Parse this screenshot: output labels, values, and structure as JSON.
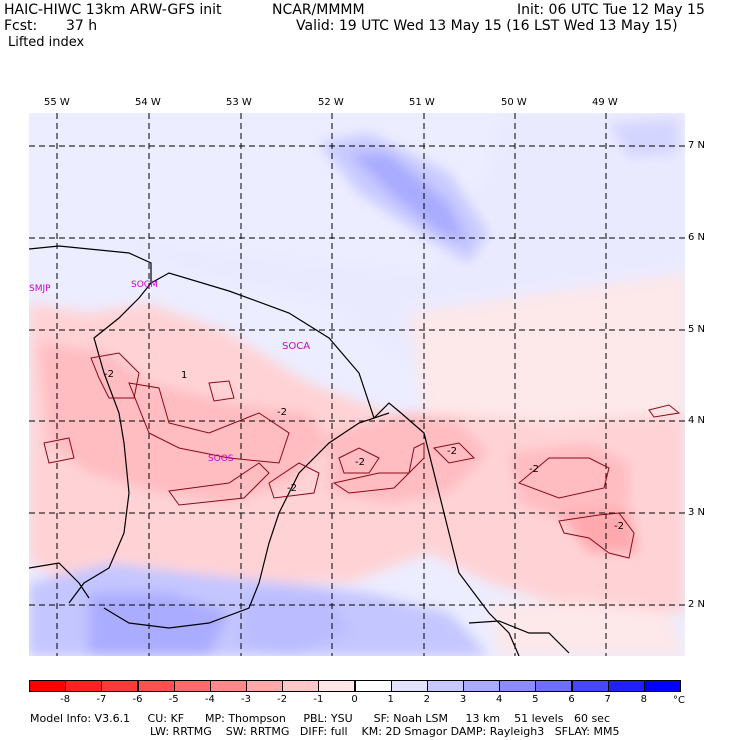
{
  "header": {
    "model": "HAIC-HIWC 13km ARW-GFS init",
    "org": "NCAR/MMMM",
    "init": "Init: 06 UTC Tue 12 May 15",
    "fcst_label": "Fcst:",
    "fcst_value": "37 h",
    "valid": "Valid: 19 UTC Wed 13 May 15 (16 LST Wed 13 May 15)",
    "field": "Lifted index"
  },
  "map": {
    "lon_labels": [
      "55 W",
      "54 W",
      "53 W",
      "52 W",
      "51 W",
      "50 W",
      "49 W"
    ],
    "lat_labels": [
      "7 N",
      "6 N",
      "5 N",
      "4 N",
      "3 N",
      "2 N"
    ],
    "cities": [
      "SMJP",
      "SOCM",
      "SOCA",
      "SOOS"
    ],
    "contour_labels": [
      "-2",
      "-2",
      "-2",
      "-2",
      "-2",
      "-2",
      "-2",
      "-2",
      "1"
    ]
  },
  "colorbar": {
    "labels": [
      "-8",
      "-7",
      "-6",
      "-5",
      "-4",
      "-3",
      "-2",
      "-1",
      "0",
      "1",
      "2",
      "3",
      "4",
      "5",
      "6",
      "7",
      "8"
    ],
    "unit": "°C",
    "colors": [
      "#ff0000",
      "#ff2020",
      "#ff3838",
      "#ff5050",
      "#ff6a6a",
      "#ff8888",
      "#ffa8a8",
      "#ffc8c8",
      "#ffe6e6",
      "#ffffff",
      "#e2e2ff",
      "#c8c8ff",
      "#aaaaff",
      "#8c8cff",
      "#6e6eff",
      "#4646ff",
      "#2020ff",
      "#0000ff"
    ]
  },
  "footer": {
    "line1": "Model Info: V3.6.1     CU: KF      MP: Thompson     PBL: YSU      SF: Noah LSM     13 km    51 levels   60 sec",
    "line2": "LW: RRTMG    SW: RRTMG   DIFF: full    KM: 2D Smagor DAMP: Rayleigh3   SFLAY: MM5"
  }
}
